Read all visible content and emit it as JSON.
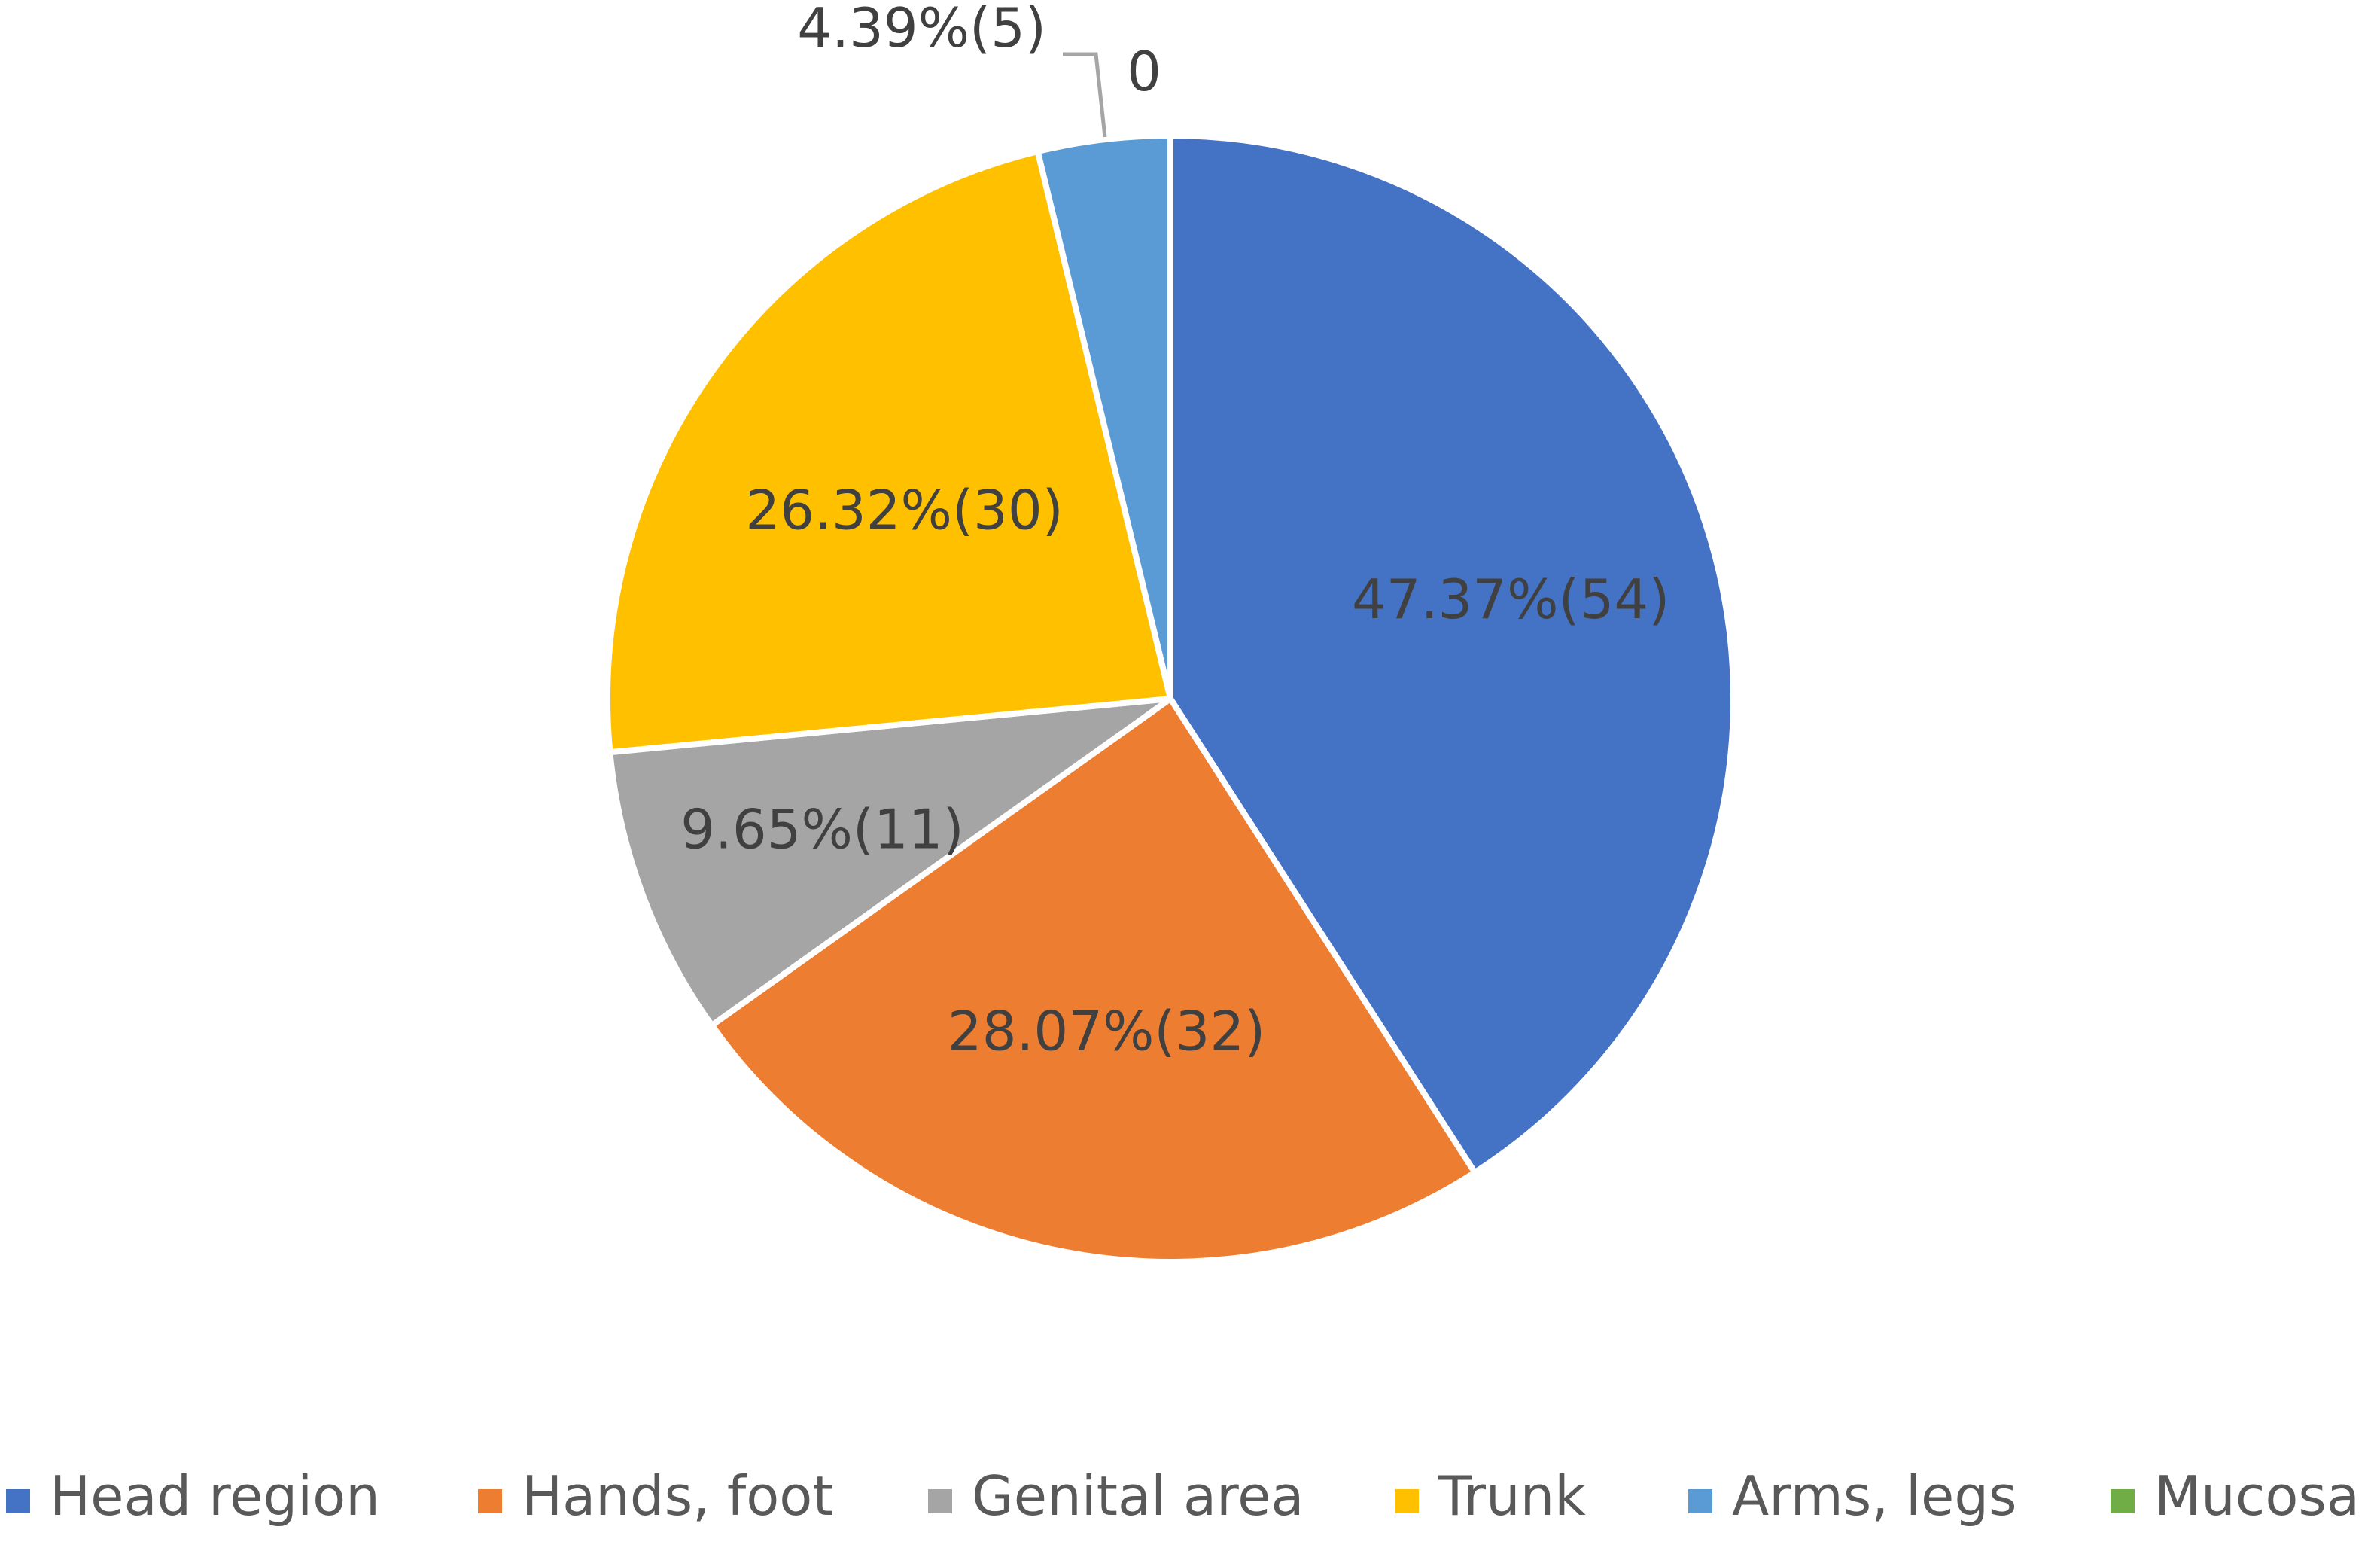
{
  "chart_data": {
    "type": "pie",
    "title": "",
    "categories": [
      "Head region",
      "Hands, foot",
      "Genital area",
      "Trunk",
      "Arms, legs",
      "Mucosa"
    ],
    "values": [
      54,
      32,
      11,
      30,
      5,
      0
    ],
    "percentages": [
      47.37,
      28.07,
      9.65,
      26.32,
      4.39,
      0
    ],
    "labels": [
      "47.37%(54)",
      "28.07%(32)",
      "9.65%(11)",
      "26.32%(30)",
      "4.39%(5)",
      "0"
    ],
    "colors": [
      "#4472C4",
      "#ED7D31",
      "#A5A5A5",
      "#FFC000",
      "#5B9BD5",
      "#70AD47"
    ],
    "legend": {
      "position": "bottom",
      "entries": [
        "Head region",
        "Hands, foot",
        "Genital area",
        "Trunk",
        "Arms, legs",
        "Mucosa"
      ]
    },
    "slice_order": "clockwise from top",
    "slice_border_color": "#ffffff",
    "label_color": "#404040",
    "leader_line_color": "#A5A5A5"
  }
}
